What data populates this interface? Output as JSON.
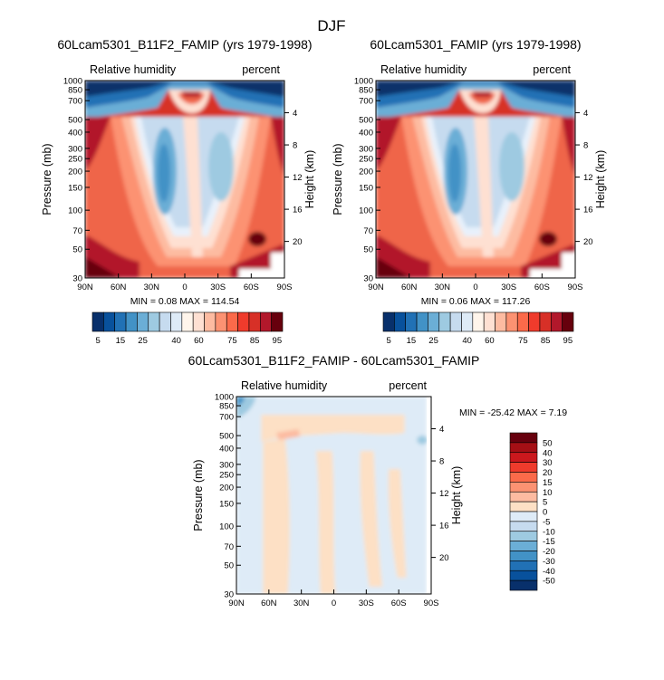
{
  "figure": {
    "season_title": "DJF",
    "colors": {
      "ocean_low": "#08306b",
      "mid": "#f7f7f7",
      "high": "#67000d"
    }
  },
  "chart_data": [
    {
      "type": "heatmap",
      "title": "60Lcam5301_B11F2_FAMIP (yrs 1979-1998)",
      "left_label": "Relative humidity",
      "right_label": "percent",
      "xlabel": "",
      "ylabel": "Pressure (mb)",
      "ylabel_right": "Height (km)",
      "x_ticks": [
        "90N",
        "60N",
        "30N",
        "0",
        "30S",
        "60S",
        "90S"
      ],
      "x_values": [
        90,
        60,
        30,
        0,
        -30,
        -60,
        -90
      ],
      "p_ticks": [
        "30",
        "50",
        "70",
        "100",
        "150",
        "200",
        "250",
        "300",
        "400",
        "500",
        "700",
        "850",
        "1000"
      ],
      "p_values": [
        30,
        50,
        70,
        100,
        150,
        200,
        250,
        300,
        400,
        500,
        700,
        850,
        1000
      ],
      "h_ticks": [
        "20",
        "16",
        "12",
        "8",
        "4"
      ],
      "h_values": [
        20,
        16,
        12,
        8,
        4
      ],
      "ylim": [
        1000,
        30
      ],
      "stats": "MIN =   0.08   MAX = 114.54",
      "levels": [
        5,
        10,
        15,
        20,
        25,
        30,
        35,
        40,
        50,
        60,
        65,
        70,
        75,
        80,
        85,
        90,
        95
      ],
      "colorbar_labels": [
        "5",
        "15",
        "25",
        "40",
        "60",
        "75",
        "85",
        "95"
      ]
    },
    {
      "type": "heatmap",
      "title": "60Lcam5301_FAMIP (yrs 1979-1998)",
      "left_label": "Relative humidity",
      "right_label": "percent",
      "xlabel": "",
      "ylabel": "Pressure (mb)",
      "ylabel_right": "Height (km)",
      "x_ticks": [
        "90N",
        "60N",
        "30N",
        "0",
        "30S",
        "60S",
        "90S"
      ],
      "x_values": [
        90,
        60,
        30,
        0,
        -30,
        -60,
        -90
      ],
      "p_ticks": [
        "30",
        "50",
        "70",
        "100",
        "150",
        "200",
        "250",
        "300",
        "400",
        "500",
        "700",
        "850",
        "1000"
      ],
      "p_values": [
        30,
        50,
        70,
        100,
        150,
        200,
        250,
        300,
        400,
        500,
        700,
        850,
        1000
      ],
      "h_ticks": [
        "20",
        "16",
        "12",
        "8",
        "4"
      ],
      "h_values": [
        20,
        16,
        12,
        8,
        4
      ],
      "ylim": [
        1000,
        30
      ],
      "stats": "MIN =   0.06   MAX = 117.26",
      "levels": [
        5,
        10,
        15,
        20,
        25,
        30,
        35,
        40,
        50,
        60,
        65,
        70,
        75,
        80,
        85,
        90,
        95
      ],
      "colorbar_labels": [
        "5",
        "15",
        "25",
        "40",
        "60",
        "75",
        "85",
        "95"
      ]
    },
    {
      "type": "heatmap",
      "title": "60Lcam5301_B11F2_FAMIP - 60Lcam5301_FAMIP",
      "left_label": "Relative humidity",
      "right_label": "percent",
      "xlabel": "",
      "ylabel": "Pressure (mb)",
      "ylabel_right": "Height (km)",
      "x_ticks": [
        "90N",
        "60N",
        "30N",
        "0",
        "30S",
        "60S",
        "90S"
      ],
      "x_values": [
        90,
        60,
        30,
        0,
        -30,
        -60,
        -90
      ],
      "p_ticks": [
        "30",
        "50",
        "70",
        "100",
        "150",
        "200",
        "250",
        "300",
        "400",
        "500",
        "700",
        "850",
        "1000"
      ],
      "p_values": [
        30,
        50,
        70,
        100,
        150,
        200,
        250,
        300,
        400,
        500,
        700,
        850,
        1000
      ],
      "h_ticks": [
        "20",
        "16",
        "12",
        "8",
        "4"
      ],
      "h_values": [
        20,
        16,
        12,
        8,
        4
      ],
      "ylim": [
        1000,
        30
      ],
      "stats": "MIN = -25.42   MAX =    7.19",
      "levels": [
        -50,
        -40,
        -30,
        -20,
        -15,
        -10,
        -5,
        0,
        5,
        10,
        15,
        20,
        30,
        40,
        50
      ],
      "colorbar_labels": [
        "50",
        "40",
        "30",
        "20",
        "15",
        "10",
        "5",
        "0",
        "-5",
        "-10",
        "-15",
        "-20",
        "-30",
        "-40",
        "-50"
      ]
    }
  ]
}
